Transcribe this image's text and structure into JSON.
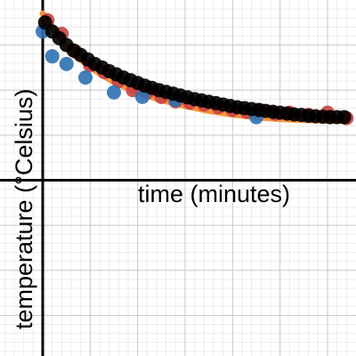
{
  "chart_data": {
    "type": "scatter",
    "xlabel": "time (minutes)",
    "ylabel": "temperature (°Celsius)",
    "xlim": [
      -0.9,
      6.6
    ],
    "ylim": [
      -3.9,
      4.0
    ],
    "grid": true,
    "curve": {
      "color": "#f7943e",
      "points": [
        [
          0,
          3.7
        ],
        [
          0.5,
          2.95
        ],
        [
          1,
          2.5
        ],
        [
          1.5,
          2.18
        ],
        [
          2,
          1.95
        ],
        [
          2.5,
          1.78
        ],
        [
          3,
          1.65
        ],
        [
          3.5,
          1.54
        ],
        [
          4,
          1.46
        ],
        [
          4.5,
          1.4
        ],
        [
          5,
          1.36
        ],
        [
          5.5,
          1.34
        ],
        [
          6,
          1.33
        ],
        [
          6.4,
          1.32
        ]
      ]
    },
    "series": [
      {
        "color": "#c74440",
        "values": [
          [
            0.1,
            3.55
          ],
          [
            0.4,
            3.25
          ],
          [
            0.7,
            2.85
          ],
          [
            1,
            2.55
          ],
          [
            1.3,
            2.4
          ],
          [
            1.6,
            2.2
          ],
          [
            1.9,
            2.0
          ],
          [
            2.2,
            1.95
          ],
          [
            2.5,
            1.85
          ],
          [
            2.8,
            1.75
          ],
          [
            3.1,
            1.72
          ],
          [
            3.4,
            1.68
          ],
          [
            3.7,
            1.62
          ],
          [
            4.0,
            1.56
          ],
          [
            4.3,
            1.52
          ],
          [
            4.6,
            1.55
          ],
          [
            4.9,
            1.48
          ],
          [
            5.2,
            1.5
          ],
          [
            5.6,
            1.45
          ],
          [
            6.0,
            1.5
          ],
          [
            6.4,
            1.38
          ]
        ]
      },
      {
        "color": "#2d70b3",
        "values": [
          [
            0,
            3.3
          ],
          [
            0.2,
            2.75
          ],
          [
            0.5,
            2.58
          ],
          [
            0.9,
            2.28
          ],
          [
            1.5,
            1.95
          ],
          [
            2.1,
            1.85
          ],
          [
            2.8,
            1.78
          ],
          [
            4.5,
            1.4
          ]
        ]
      },
      {
        "color": "#000000",
        "values": [
          [
            0.05,
            3.5
          ],
          [
            0.2,
            3.3
          ],
          [
            0.35,
            3.15
          ],
          [
            0.5,
            3.0
          ],
          [
            0.65,
            2.88
          ],
          [
            0.8,
            2.78
          ],
          [
            0.95,
            2.68
          ],
          [
            1.1,
            2.58
          ],
          [
            1.25,
            2.5
          ],
          [
            1.4,
            2.42
          ],
          [
            1.55,
            2.35
          ],
          [
            1.7,
            2.28
          ],
          [
            1.85,
            2.22
          ],
          [
            2.0,
            2.16
          ],
          [
            2.15,
            2.1
          ],
          [
            2.3,
            2.05
          ],
          [
            2.45,
            2.0
          ],
          [
            2.6,
            1.96
          ],
          [
            2.75,
            1.92
          ],
          [
            2.9,
            1.88
          ],
          [
            3.05,
            1.84
          ],
          [
            3.2,
            1.8
          ],
          [
            3.35,
            1.77
          ],
          [
            3.5,
            1.74
          ],
          [
            3.65,
            1.71
          ],
          [
            3.8,
            1.68
          ],
          [
            3.95,
            1.65
          ],
          [
            4.1,
            1.62
          ],
          [
            4.25,
            1.6
          ],
          [
            4.4,
            1.58
          ],
          [
            4.55,
            1.56
          ],
          [
            4.7,
            1.54
          ],
          [
            4.85,
            1.52
          ],
          [
            5.0,
            1.5
          ],
          [
            5.15,
            1.48
          ],
          [
            5.3,
            1.46
          ],
          [
            5.45,
            1.45
          ],
          [
            5.6,
            1.43
          ],
          [
            5.75,
            1.42
          ],
          [
            5.9,
            1.41
          ],
          [
            6.05,
            1.4
          ],
          [
            6.2,
            1.4
          ],
          [
            6.35,
            1.4
          ]
        ]
      }
    ]
  }
}
